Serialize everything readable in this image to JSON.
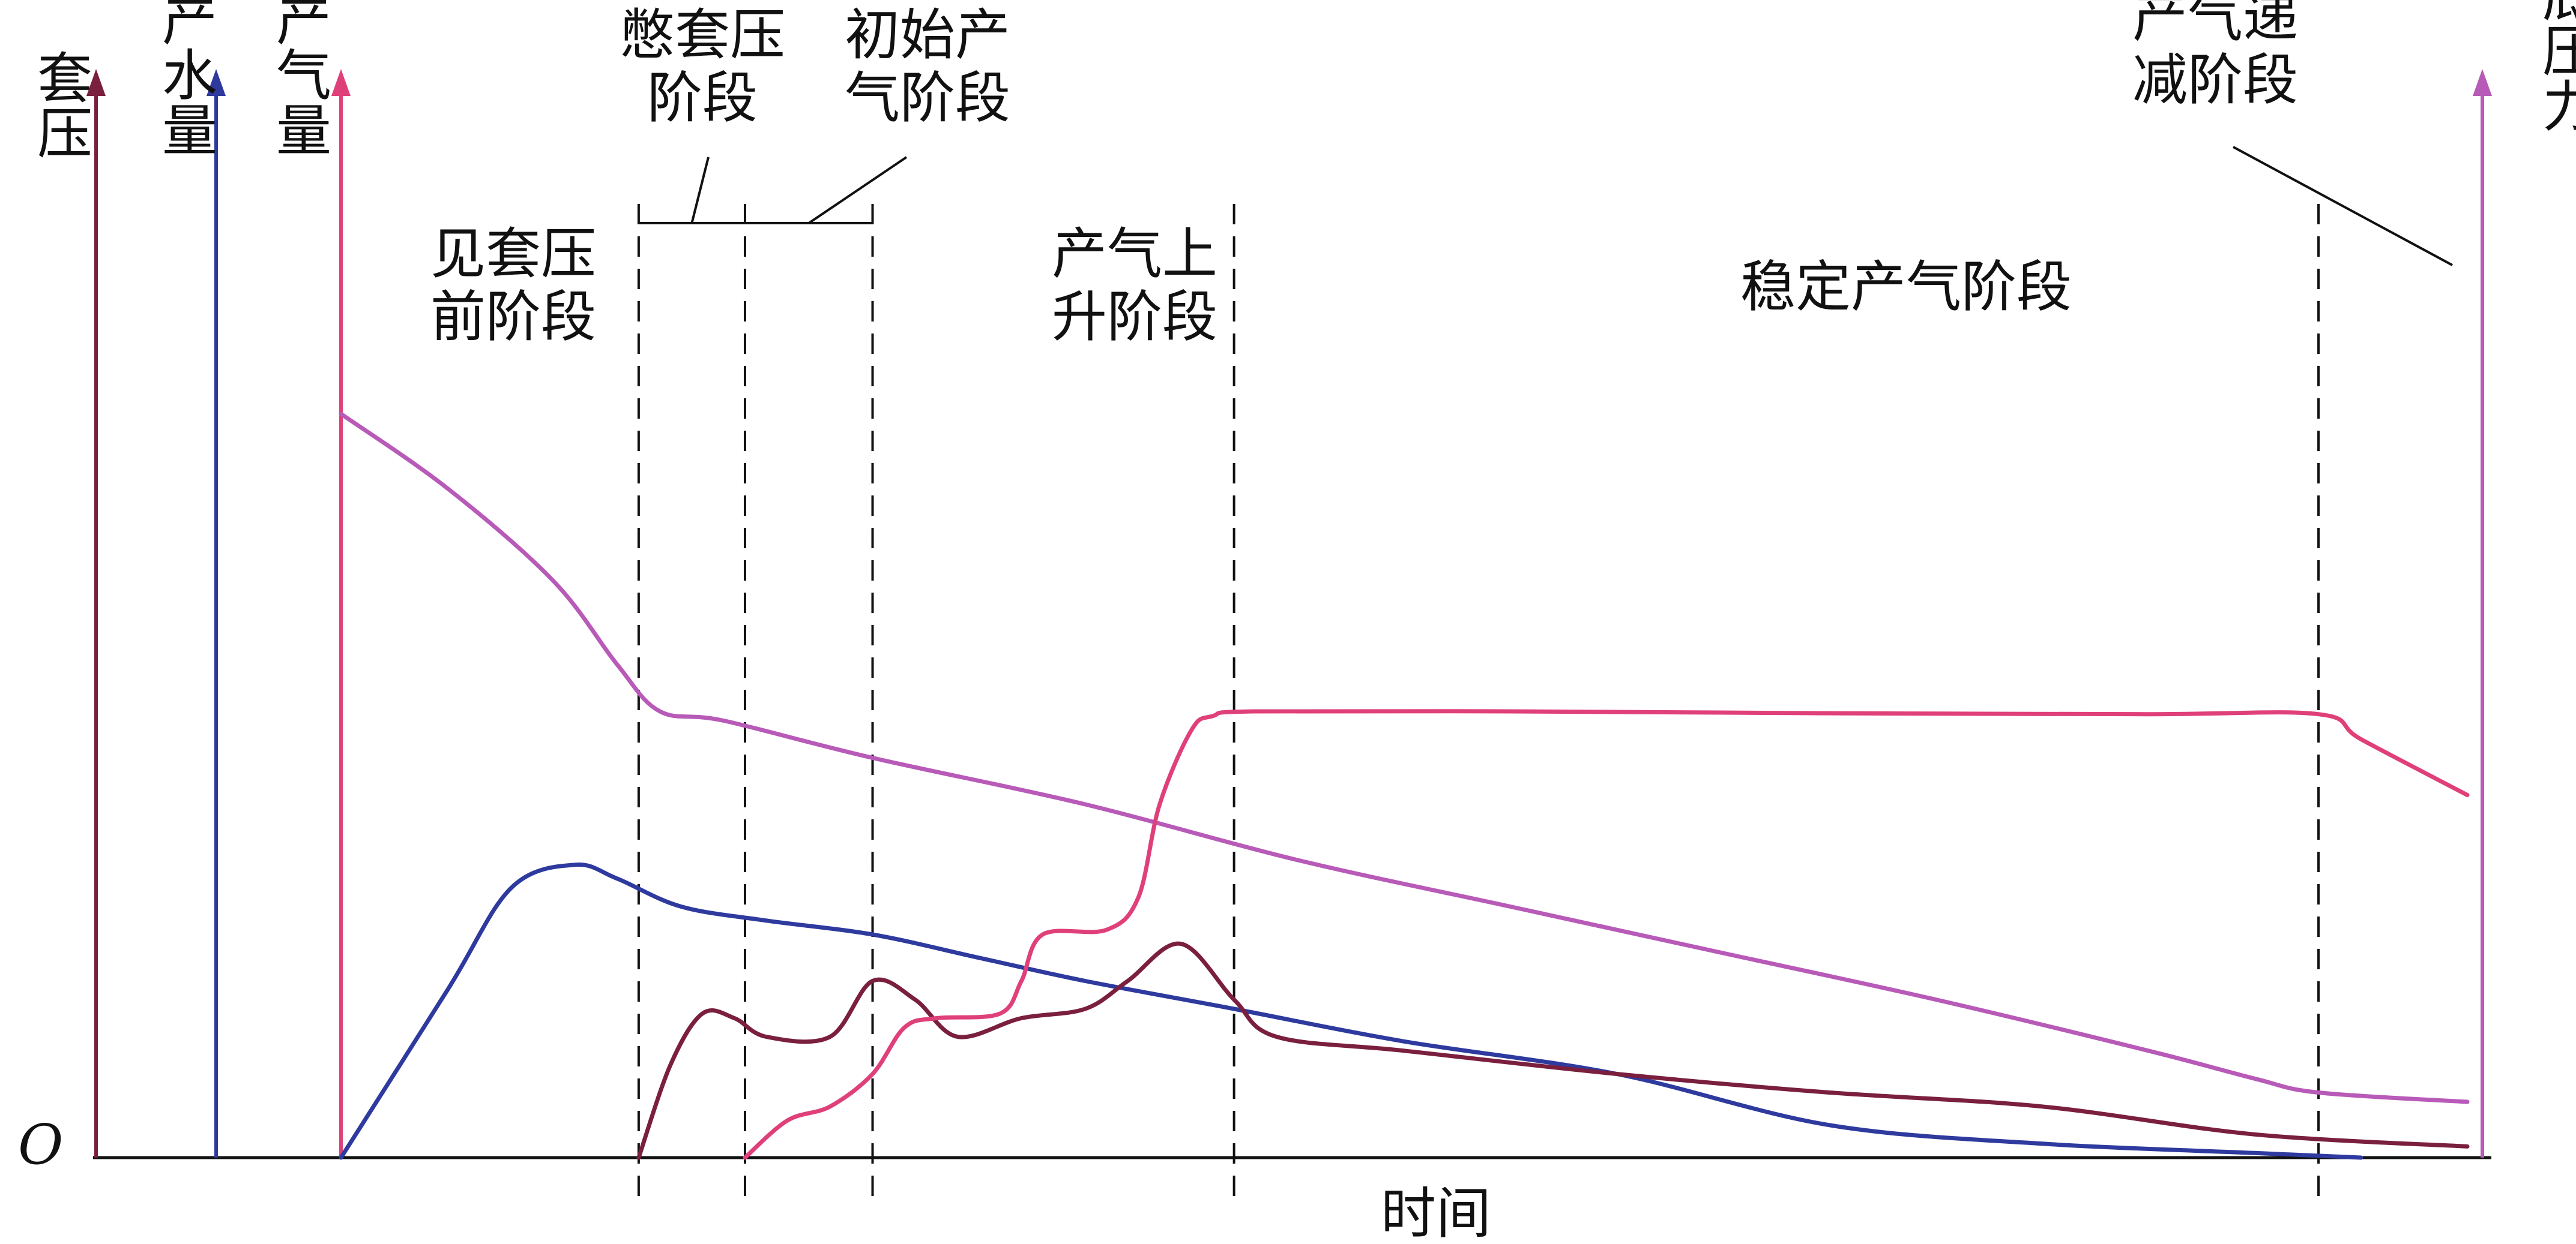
{
  "chart_data": {
    "type": "line",
    "title": "",
    "xlabel": "时间",
    "origin_label": "O",
    "axes": {
      "casing_pressure": {
        "label": "套压",
        "color": "#7a1f3d"
      },
      "daily_water": {
        "label": "日产水量",
        "color": "#2e3a9e"
      },
      "daily_gas": {
        "label": "日产气量",
        "color": "#e0407a"
      },
      "bottomhole_pressure": {
        "label": "井底压力",
        "color": "#b85ab8"
      }
    },
    "stages": [
      {
        "label_lines": [
          "见套压",
          "前阶段"
        ],
        "x_start": 0,
        "x_end": 14
      },
      {
        "label_lines": [
          "憋套压",
          "阶段"
        ],
        "x_start": 14,
        "x_end": 19
      },
      {
        "label_lines": [
          "初始产",
          "气阶段"
        ],
        "x_start": 19,
        "x_end": 25
      },
      {
        "label_lines": [
          "产气上",
          "升阶段"
        ],
        "x_start": 25,
        "x_end": 42
      },
      {
        "label_lines": [
          "稳定产气阶段"
        ],
        "x_start": 42,
        "x_end": 93
      },
      {
        "label_lines": [
          "产气递",
          "减阶段"
        ],
        "x_start": 93,
        "x_end": 100
      }
    ],
    "stage_boundaries": [
      14,
      19,
      25,
      42,
      93
    ],
    "xlim": [
      -10,
      100
    ],
    "ylim": [
      0,
      100
    ],
    "series": [
      {
        "name": "井底压力",
        "color": "#b85ab8",
        "points": [
          [
            0,
            80
          ],
          [
            5,
            72
          ],
          [
            10,
            62
          ],
          [
            13,
            53
          ],
          [
            15,
            48
          ],
          [
            18,
            47
          ],
          [
            25,
            43
          ],
          [
            35,
            38
          ],
          [
            45,
            32
          ],
          [
            55,
            27
          ],
          [
            65,
            22
          ],
          [
            75,
            17
          ],
          [
            85,
            11.5
          ],
          [
            90,
            8.5
          ],
          [
            93,
            7
          ],
          [
            100,
            6
          ]
        ]
      },
      {
        "name": "日产水量",
        "color": "#2e3a9e",
        "points": [
          [
            0,
            0
          ],
          [
            5,
            18
          ],
          [
            8,
            29
          ],
          [
            11,
            31.5
          ],
          [
            13,
            30
          ],
          [
            16,
            27
          ],
          [
            20,
            25.5
          ],
          [
            25,
            24
          ],
          [
            30,
            21.5
          ],
          [
            35,
            19
          ],
          [
            42,
            16
          ],
          [
            50,
            12.5
          ],
          [
            60,
            9
          ],
          [
            70,
            3.5
          ],
          [
            80,
            1.5
          ],
          [
            90,
            0.5
          ],
          [
            95,
            0
          ]
        ]
      },
      {
        "name": "套压",
        "color": "#7a1f3d",
        "points": [
          [
            14,
            0
          ],
          [
            15.5,
            10
          ],
          [
            17,
            15.5
          ],
          [
            18.5,
            15
          ],
          [
            20,
            13
          ],
          [
            23,
            13
          ],
          [
            25,
            19
          ],
          [
            27,
            17
          ],
          [
            29,
            13
          ],
          [
            32,
            15
          ],
          [
            35,
            16
          ],
          [
            37,
            19
          ],
          [
            39.5,
            23
          ],
          [
            42,
            17
          ],
          [
            44,
            13
          ],
          [
            50,
            11.5
          ],
          [
            60,
            9
          ],
          [
            70,
            7
          ],
          [
            80,
            5.5
          ],
          [
            90,
            2.5
          ],
          [
            100,
            1.2
          ]
        ]
      },
      {
        "name": "日产气量",
        "color": "#e0407a",
        "points": [
          [
            19,
            0
          ],
          [
            21,
            4
          ],
          [
            23,
            5.5
          ],
          [
            25,
            9
          ],
          [
            26.5,
            14
          ],
          [
            28,
            15
          ],
          [
            31,
            15.5
          ],
          [
            32,
            19
          ],
          [
            33,
            24
          ],
          [
            36,
            24.5
          ],
          [
            37.5,
            28
          ],
          [
            38.5,
            38
          ],
          [
            40,
            46
          ],
          [
            41,
            47.5
          ],
          [
            43,
            48
          ],
          [
            55,
            48
          ],
          [
            70,
            47.8
          ],
          [
            85,
            47.7
          ],
          [
            93,
            47.7
          ],
          [
            95,
            45
          ],
          [
            100,
            39
          ]
        ]
      }
    ]
  }
}
